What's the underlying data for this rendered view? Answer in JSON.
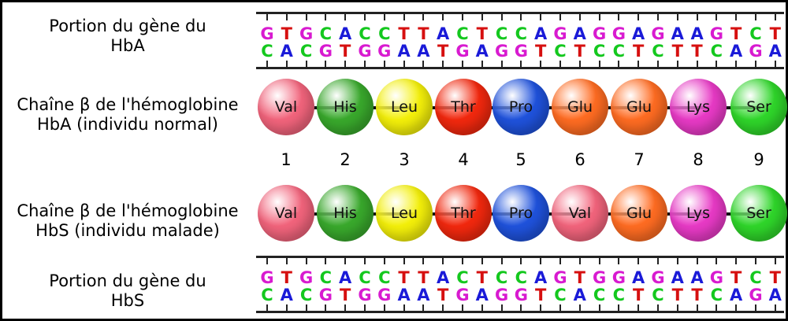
{
  "labels": {
    "gene_hba": [
      "Portion du gène du",
      "HbA"
    ],
    "chain_hba": [
      "Chaîne β de l'hémoglobine",
      "HbA (individu normal)"
    ],
    "chain_hbs": [
      "Chaîne β de l'hémoglobine",
      "HbS (individu malade)"
    ],
    "gene_hbs": [
      "Portion du gène du",
      "HbS"
    ]
  },
  "nucleotide_colors": {
    "G": "#d81ad0",
    "T": "#d60f0f",
    "C": "#14c81e",
    "A": "#1a1ad8"
  },
  "amino_acid_colors": {
    "Val": "#f2647c",
    "His": "#39a92c",
    "Leu": "#f4f00a",
    "Thr": "#f2280e",
    "Pro": "#1f52dc",
    "Glu": "#ff6c22",
    "Lys": "#e83ac6",
    "Ser": "#2fd62a"
  },
  "gene_hba": {
    "top": "GTGCACCTTACTCCAGAGGAGAAGTCT",
    "bottom": "CACGTGGAATGAGGTCTCCTCTTCAGA"
  },
  "gene_hbs": {
    "top": "GTGCACCTTACTCCAGTGGAGAAGTCT",
    "bottom": "CACGTGGAATGAGGTCACCTCTTCAGA"
  },
  "chain_hba": [
    "Val",
    "His",
    "Leu",
    "Thr",
    "Pro",
    "Glu",
    "Glu",
    "Lys",
    "Ser"
  ],
  "chain_hbs": [
    "Val",
    "His",
    "Leu",
    "Thr",
    "Pro",
    "Val",
    "Glu",
    "Lys",
    "Ser"
  ],
  "positions": [
    "1",
    "2",
    "3",
    "4",
    "5",
    "6",
    "7",
    "8",
    "9"
  ]
}
